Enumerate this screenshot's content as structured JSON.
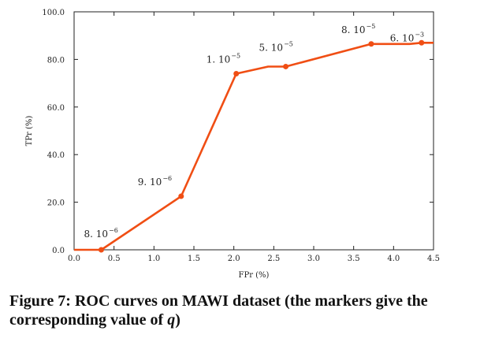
{
  "chart_data": {
    "type": "line",
    "xlabel": "FPr (%)",
    "ylabel": "TPr (%)",
    "xlim": [
      0.0,
      4.5
    ],
    "ylim": [
      0.0,
      100.0
    ],
    "x_ticks": [
      "0.0",
      "0.5",
      "1.0",
      "1.5",
      "2.0",
      "2.5",
      "3.0",
      "3.5",
      "4.0",
      "4.5"
    ],
    "y_ticks": [
      "0.0",
      "20.0",
      "40.0",
      "60.0",
      "80.0",
      "100.0"
    ],
    "grid": false,
    "series": [
      {
        "color": "#f04e14",
        "x": [
          0.0,
          0.34,
          1.34,
          2.03,
          2.43,
          2.65,
          3.72,
          4.2,
          4.35,
          4.55
        ],
        "y": [
          0.0,
          0.0,
          22.5,
          74.0,
          77.0,
          77.0,
          86.5,
          86.5,
          87.0,
          87.0
        ]
      }
    ],
    "markers": [
      {
        "x": 0.34,
        "y": 0.0,
        "label_base": "8. 10",
        "label_exp": "−6"
      },
      {
        "x": 1.34,
        "y": 22.5,
        "label_base": "9. 10",
        "label_exp": "−6"
      },
      {
        "x": 2.03,
        "y": 74.0,
        "label_base": "1. 10",
        "label_exp": "−5"
      },
      {
        "x": 2.65,
        "y": 77.0,
        "label_base": "5. 10",
        "label_exp": "−5"
      },
      {
        "x": 3.72,
        "y": 86.5,
        "label_base": "8. 10",
        "label_exp": "−5"
      },
      {
        "x": 4.35,
        "y": 87.0,
        "label_base": "6. 10",
        "label_exp": "−3"
      }
    ]
  },
  "caption": {
    "figure_label": "Figure 7:",
    "text": "ROC curves on MAWI dataset (the markers give the corresponding value of",
    "variable": "q",
    "closing": ")"
  }
}
